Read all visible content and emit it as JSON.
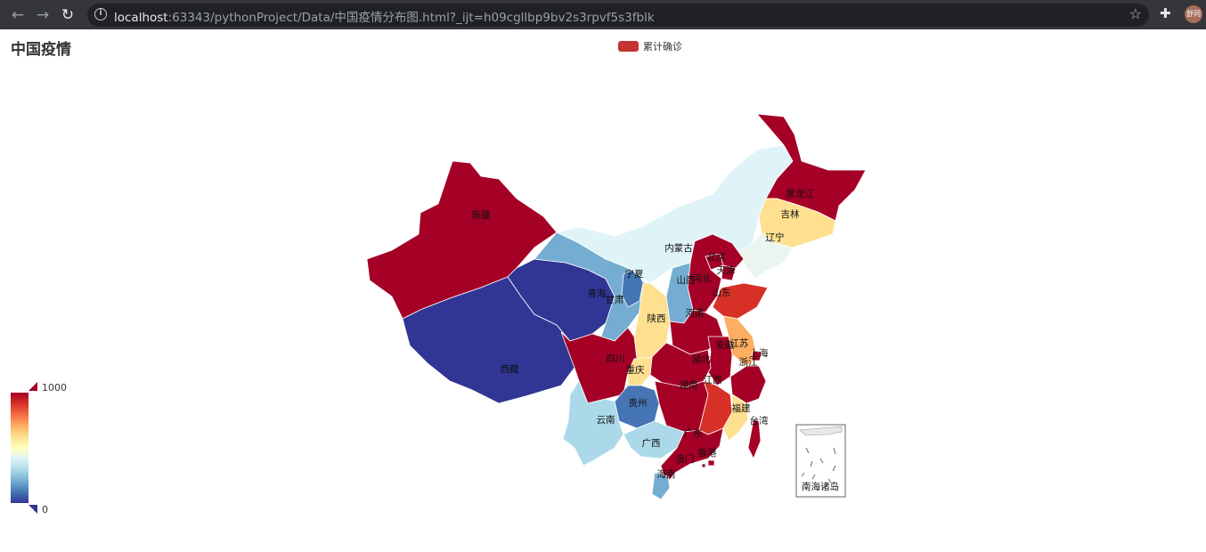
{
  "browser": {
    "url_host": "localhost",
    "url_rest": ":63343/pythonProject/Data/中国疫情分布图.html?_ijt=h09cgllbp9bv2s3rpvf5s3fblk",
    "avatar_text": "舒同"
  },
  "chart_data": {
    "type": "map",
    "title": "中国疫情",
    "legend": [
      "累计确诊"
    ],
    "visual_map": {
      "min": "0",
      "max": "1000",
      "colors": [
        "#313695",
        "#4575b4",
        "#74add1",
        "#abd9e9",
        "#e0f3f8",
        "#ffffbf",
        "#fee090",
        "#fdae61",
        "#f46d43",
        "#d73027",
        "#a50026"
      ]
    },
    "regions": [
      {
        "name": "新疆",
        "color": "#a50026"
      },
      {
        "name": "西藏",
        "color": "#313695"
      },
      {
        "name": "青海",
        "color": "#313695"
      },
      {
        "name": "甘肃",
        "color": "#74add1"
      },
      {
        "name": "宁夏",
        "color": "#4575b4"
      },
      {
        "name": "内蒙古",
        "color": "#e0f3f8"
      },
      {
        "name": "黑龙江",
        "color": "#a50026"
      },
      {
        "name": "吉林",
        "color": "#fee090"
      },
      {
        "name": "辽宁",
        "color": "#eaf5ef"
      },
      {
        "name": "北京",
        "color": "#a50026"
      },
      {
        "name": "天津",
        "color": "#a50026"
      },
      {
        "name": "河北",
        "color": "#a50026"
      },
      {
        "name": "山西",
        "color": "#74add1"
      },
      {
        "name": "山东",
        "color": "#d73027"
      },
      {
        "name": "陕西",
        "color": "#fee090"
      },
      {
        "name": "河南",
        "color": "#a50026"
      },
      {
        "name": "江苏",
        "color": "#fdae61"
      },
      {
        "name": "上海",
        "color": "#a50026"
      },
      {
        "name": "安徽",
        "color": "#a50026"
      },
      {
        "name": "湖北",
        "color": "#a50026"
      },
      {
        "name": "浙江",
        "color": "#a50026"
      },
      {
        "name": "四川",
        "color": "#a50026"
      },
      {
        "name": "重庆",
        "color": "#fee090"
      },
      {
        "name": "湖南",
        "color": "#a50026"
      },
      {
        "name": "江西",
        "color": "#d73027"
      },
      {
        "name": "贵州",
        "color": "#4575b4"
      },
      {
        "name": "云南",
        "color": "#abd9e9"
      },
      {
        "name": "广西",
        "color": "#abd9e9"
      },
      {
        "name": "广东",
        "color": "#a50026"
      },
      {
        "name": "福建",
        "color": "#fee090"
      },
      {
        "name": "台湾",
        "color": "#a50026"
      },
      {
        "name": "香港",
        "color": "#a50026"
      },
      {
        "name": "澳门",
        "color": "#a50026"
      },
      {
        "name": "海南",
        "color": "#74add1"
      },
      {
        "name": "南海诸岛",
        "color": "#ffffff"
      }
    ]
  }
}
